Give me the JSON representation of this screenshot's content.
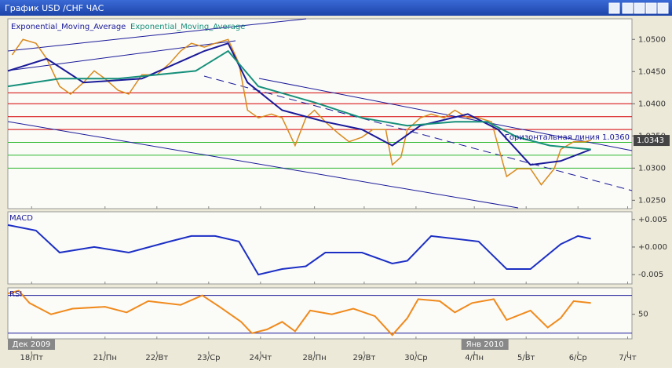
{
  "window": {
    "title": "График USD /CHF ЧАС"
  },
  "x_axis": {
    "xlim": [
      0,
      289
    ],
    "xticks": [
      {
        "value": 11,
        "label": "18/Пт"
      },
      {
        "value": 45,
        "label": "21/Пн"
      },
      {
        "value": 69,
        "label": "22/Вт"
      },
      {
        "value": 93,
        "label": "23/Ср"
      },
      {
        "value": 117,
        "label": "24/Чт"
      },
      {
        "value": 142,
        "label": "28/Пн"
      },
      {
        "value": 165,
        "label": "29/Вт"
      },
      {
        "value": 189,
        "label": "30/Ср"
      },
      {
        "value": 216,
        "label": "4/Пн"
      },
      {
        "value": 240,
        "label": "5/Вт"
      },
      {
        "value": 264,
        "label": "6/Ср"
      },
      {
        "value": 287,
        "label": "7/Чт"
      }
    ],
    "period_labels": [
      {
        "value": 0,
        "label": "Дек 2009"
      },
      {
        "value": 210,
        "label": "Янв 2010"
      }
    ]
  },
  "chart_data": [
    {
      "type": "line",
      "ylim": [
        1.0237,
        1.0532
      ],
      "yticks": [
        {
          "value": 1.025,
          "label": "1.0250"
        },
        {
          "value": 1.03,
          "label": "1.0300"
        },
        {
          "value": 1.035,
          "label": "1.0350"
        },
        {
          "value": 1.04,
          "label": "1.0400"
        },
        {
          "value": 1.045,
          "label": "1.0450"
        },
        {
          "value": 1.05,
          "label": "1.0500"
        }
      ],
      "current_price": 1.0343,
      "levels": [
        {
          "value": 1.0417,
          "color": "#d40000"
        },
        {
          "value": 1.04,
          "color": "#d40000"
        },
        {
          "value": 1.038,
          "color": "#d40000"
        },
        {
          "value": 1.036,
          "color": "#d40000"
        },
        {
          "value": 1.034,
          "color": "#2eb82e"
        },
        {
          "value": 1.032,
          "color": "#2eb82e"
        },
        {
          "value": 1.03,
          "color": "#2eb82e"
        }
      ],
      "annotation": "Горизонтальная линия 1.0360",
      "series": [
        {
          "color": "#d98a1c",
          "x": [
            2,
            7,
            13,
            18,
            24,
            29,
            35,
            40,
            45,
            51,
            56,
            62,
            69,
            75,
            80,
            85,
            91,
            96,
            102,
            107,
            111,
            116,
            122,
            127,
            133,
            138,
            142,
            147,
            153,
            158,
            164,
            169,
            175,
            178,
            182,
            185,
            191,
            196,
            202,
            207,
            213,
            218,
            224,
            227,
            231,
            236,
            242,
            247,
            253,
            256,
            262,
            267,
            270
          ],
          "values": [
            1.0476,
            1.05,
            1.0494,
            1.047,
            1.0427,
            1.0415,
            1.0433,
            1.0451,
            1.0439,
            1.0421,
            1.0415,
            1.0445,
            1.0445,
            1.0463,
            1.0482,
            1.0494,
            1.0488,
            1.0494,
            1.05,
            1.0463,
            1.039,
            1.0378,
            1.0384,
            1.0378,
            1.0335,
            1.0378,
            1.039,
            1.0372,
            1.0354,
            1.0341,
            1.0348,
            1.036,
            1.036,
            1.0305,
            1.0317,
            1.036,
            1.0378,
            1.0384,
            1.0378,
            1.039,
            1.0378,
            1.0378,
            1.0372,
            1.0335,
            1.0287,
            1.0299,
            1.0299,
            1.0274,
            1.0299,
            1.0329,
            1.0341,
            1.0341,
            1.0343
          ]
        },
        {
          "name": "Exponential_Moving_Average",
          "color": "#1a1a99",
          "x": [
            0,
            18,
            35,
            62,
            91,
            102,
            111,
            127,
            147,
            164,
            178,
            191,
            213,
            227,
            242,
            256,
            270
          ],
          "values": [
            1.0451,
            1.047,
            1.0433,
            1.0439,
            1.0482,
            1.0494,
            1.0433,
            1.039,
            1.0372,
            1.036,
            1.0335,
            1.0366,
            1.0384,
            1.036,
            1.0305,
            1.0311,
            1.0329
          ]
        },
        {
          "name": "Exponential_Moving_Average",
          "color": "#16907a",
          "x": [
            0,
            24,
            51,
            87,
            102,
            116,
            142,
            164,
            185,
            207,
            222,
            236,
            251,
            270
          ],
          "values": [
            1.0427,
            1.0439,
            1.0439,
            1.0451,
            1.0482,
            1.0427,
            1.0402,
            1.0378,
            1.0366,
            1.0372,
            1.0372,
            1.0348,
            1.0335,
            1.0329
          ]
        }
      ]
    },
    {
      "type": "line",
      "title": "MACD",
      "ylim": [
        -0.0067,
        0.0064
      ],
      "yticks": [
        {
          "value": -0.005,
          "label": "-0.005"
        },
        {
          "value": 0,
          "label": "+0.000"
        },
        {
          "value": 0.005,
          "label": "+0.005"
        }
      ],
      "series": [
        {
          "color": "#1c2fc4",
          "x": [
            0,
            13,
            24,
            40,
            56,
            75,
            85,
            96,
            107,
            116,
            127,
            138,
            147,
            164,
            178,
            185,
            196,
            207,
            218,
            231,
            242,
            256,
            264,
            270
          ],
          "values": [
            0.004,
            0.003,
            -0.001,
            0,
            -0.001,
            0.001,
            0.002,
            0.002,
            0.001,
            -0.005,
            -0.004,
            -0.0035,
            -0.001,
            -0.001,
            -0.003,
            -0.0025,
            0.002,
            0.0015,
            0.001,
            -0.004,
            -0.004,
            0.0005,
            0.002,
            0.0015
          ]
        }
      ]
    },
    {
      "type": "line",
      "title": "RSI",
      "ylim": [
        24,
        78
      ],
      "yticks": [
        50
      ],
      "levels": [
        {
          "value": 30,
          "color": "#1a1a99"
        },
        {
          "value": 70,
          "color": "#1a1a99"
        }
      ],
      "series": [
        {
          "color": "#f08a1c",
          "x": [
            0,
            5,
            10,
            20,
            30,
            45,
            55,
            65,
            80,
            90,
            98,
            108,
            113,
            120,
            127,
            133,
            140,
            150,
            160,
            170,
            178,
            185,
            190,
            200,
            207,
            215,
            225,
            231,
            242,
            250,
            256,
            262,
            270
          ],
          "values": [
            72,
            75,
            62,
            50,
            56,
            58,
            52,
            64,
            60,
            70,
            58,
            42,
            30,
            34,
            42,
            32,
            54,
            50,
            56,
            48,
            28,
            46,
            66,
            64,
            52,
            62,
            66,
            44,
            54,
            36,
            46,
            64,
            62
          ]
        }
      ]
    }
  ]
}
